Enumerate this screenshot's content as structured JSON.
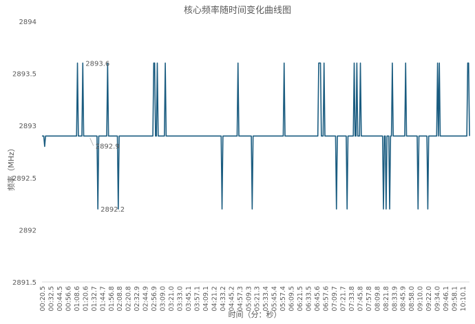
{
  "chart_data": {
    "type": "line",
    "title": "核心频率随时间变化曲线图",
    "xlabel": "时间（分：秒）",
    "ylabel": "频率（MHz）",
    "ylim": [
      2891.5,
      2894
    ],
    "yticks": [
      2891.5,
      2892,
      2892.5,
      2893,
      2893.5,
      2894
    ],
    "ytick_labels": [
      "2891.5",
      "2892",
      "2892.5",
      "2893",
      "2893.5",
      "2894"
    ],
    "grid": false,
    "line_color": "#1a5c80",
    "xtick_labels": [
      "00:20.5",
      "00:32.5",
      "00:44.5",
      "00:56.6",
      "01:08.6",
      "01:20.6",
      "01:32.7",
      "01:44.7",
      "01:56.8",
      "02:08.8",
      "02:20.8",
      "02:32.9",
      "02:44.9",
      "02:56.9",
      "03:09.0",
      "03:21.0",
      "03:33.0",
      "03:45.1",
      "03:57.1",
      "04:09.1",
      "04:21.2",
      "04:33.2",
      "04:45.2",
      "04:57.3",
      "05:09.3",
      "05:21.3",
      "05:33.4",
      "05:45.4",
      "05:57.4",
      "06:09.5",
      "06:21.5",
      "06:33.5",
      "06:45.6",
      "06:57.6",
      "07:09.7",
      "07:21.7",
      "07:33.8",
      "07:45.8",
      "07:57.8",
      "08:09.8",
      "08:21.8",
      "08:33.9",
      "08:45.9",
      "08:58.0",
      "09:10.0",
      "09:22.0",
      "09:34.0",
      "09:46.1",
      "09:58.1",
      "10:10.1"
    ],
    "series": [
      {
        "values": [
          2892.9,
          2892.9,
          2892.9,
          2892.8,
          2892.9,
          2892.9,
          2892.9,
          2892.9,
          2892.9,
          2892.9,
          2892.9,
          2892.9,
          2892.9,
          2892.9,
          2892.9,
          2892.9,
          2892.9,
          2892.9,
          2892.9,
          2892.9,
          2892.9,
          2892.9,
          2892.9,
          2892.9,
          2892.9,
          2892.9,
          2892.9,
          2892.9,
          2892.9,
          2892.9,
          2892.9,
          2892.9,
          2892.9,
          2892.9,
          2892.9,
          2892.9,
          2892.9,
          2892.9,
          2892.9,
          2892.9,
          2893.6,
          2892.9,
          2892.9,
          2892.9,
          2892.9,
          2892.9,
          2893.6,
          2892.9,
          2892.9,
          2892.9,
          2892.9,
          2892.9,
          2892.9,
          2892.9,
          2892.9,
          2892.9,
          2892.9,
          2892.9,
          2892.9,
          2892.9,
          2892.9,
          2892.9,
          2892.9,
          2892.2,
          2892.9,
          2892.9,
          2892.9,
          2892.9,
          2892.9,
          2892.9,
          2892.9,
          2892.9,
          2892.9,
          2892.9,
          2893.6,
          2892.9,
          2892.9,
          2892.9,
          2892.9,
          2892.9,
          2892.9,
          2892.9,
          2892.9,
          2892.9,
          2892.9,
          2892.9,
          2892.2,
          2892.9,
          2892.9,
          2892.9,
          2892.9,
          2892.9,
          2892.9,
          2892.9,
          2892.9,
          2892.9,
          2892.9,
          2892.9,
          2892.9,
          2892.9,
          2892.9,
          2892.9,
          2892.9,
          2892.9,
          2892.9,
          2892.9,
          2892.9,
          2892.9,
          2892.9,
          2892.9,
          2892.9,
          2892.9,
          2892.9,
          2892.9,
          2892.9,
          2892.9,
          2892.9,
          2892.9,
          2892.9,
          2892.9,
          2892.9,
          2892.9,
          2892.9,
          2892.9,
          2892.9,
          2892.9,
          2893.6,
          2893.6,
          2892.9,
          2892.9,
          2893.6,
          2892.9,
          2892.9,
          2892.9,
          2892.9,
          2892.9,
          2892.9,
          2892.9,
          2892.9,
          2893.6,
          2892.9,
          2892.9,
          2892.9,
          2892.9,
          2892.9,
          2892.9,
          2892.9,
          2892.9,
          2892.9,
          2892.9,
          2892.9,
          2892.9,
          2892.9,
          2892.9,
          2892.9,
          2892.9,
          2892.9,
          2892.9,
          2892.9,
          2892.9,
          2892.9,
          2892.9,
          2892.9,
          2892.9,
          2892.9,
          2892.9,
          2892.9,
          2892.9,
          2892.9,
          2892.9,
          2892.9,
          2892.9,
          2892.9,
          2892.9,
          2892.9,
          2892.9,
          2892.9,
          2892.9,
          2892.9,
          2892.9,
          2892.9,
          2892.9,
          2892.9,
          2892.9,
          2892.9,
          2892.9,
          2892.9,
          2892.9,
          2892.9,
          2892.9,
          2892.9,
          2892.9,
          2892.9,
          2892.9,
          2892.9,
          2892.9,
          2892.9,
          2892.9,
          2892.9,
          2892.9,
          2892.9,
          2892.9,
          2892.9,
          2892.2,
          2892.9,
          2892.9,
          2892.9,
          2892.9,
          2892.9,
          2892.9,
          2892.9,
          2892.9,
          2892.9,
          2892.9,
          2892.9,
          2892.9,
          2892.9,
          2892.9,
          2892.9,
          2892.9,
          2892.9,
          2893.6,
          2892.9,
          2892.9,
          2892.9,
          2892.9,
          2892.9,
          2892.9,
          2892.9,
          2892.9,
          2892.9,
          2892.9,
          2892.9,
          2892.9,
          2892.9,
          2892.9,
          2892.9,
          2892.2,
          2892.9,
          2892.9,
          2892.9,
          2892.9,
          2892.9,
          2892.9,
          2892.9,
          2892.9,
          2892.9,
          2892.9,
          2892.9,
          2892.9,
          2892.9,
          2892.9,
          2892.9,
          2892.9,
          2892.9,
          2892.9,
          2892.9,
          2892.9,
          2892.9,
          2892.9,
          2892.9,
          2892.9,
          2892.9,
          2892.9,
          2892.9,
          2892.9,
          2892.9,
          2892.9,
          2892.9,
          2892.9,
          2892.9,
          2892.9,
          2892.9,
          2893.6,
          2892.9,
          2892.9,
          2892.9,
          2892.9,
          2892.9,
          2892.9,
          2892.9,
          2892.9,
          2892.9,
          2892.9,
          2892.9,
          2892.9,
          2892.9,
          2892.9,
          2892.9,
          2892.9,
          2892.9,
          2892.9,
          2892.9,
          2892.9,
          2892.9,
          2892.9,
          2892.9,
          2892.9,
          2892.9,
          2892.9,
          2892.9,
          2892.9,
          2892.9,
          2892.9,
          2892.9,
          2892.9,
          2892.9,
          2892.9,
          2892.9,
          2892.9,
          2892.9,
          2892.9,
          2893.6,
          2893.6,
          2893.6,
          2892.9,
          2892.9,
          2892.9,
          2893.6,
          2892.9,
          2892.9,
          2892.9,
          2892.9,
          2892.9,
          2892.9,
          2892.9,
          2892.9,
          2892.9,
          2892.9,
          2892.9,
          2892.9,
          2892.9,
          2892.2,
          2892.9,
          2892.9,
          2892.9,
          2892.9,
          2892.9,
          2892.9,
          2892.9,
          2892.9,
          2892.9,
          2892.9,
          2892.9,
          2892.2,
          2892.9,
          2892.9,
          2892.9,
          2892.9,
          2892.9,
          2892.9,
          2892.9,
          2893.6,
          2892.9,
          2892.9,
          2893.6,
          2892.9,
          2892.9,
          2892.9,
          2893.6,
          2892.9,
          2892.9,
          2892.9,
          2892.9,
          2892.9,
          2892.9,
          2892.9,
          2892.9,
          2892.9,
          2892.9,
          2892.9,
          2892.9,
          2892.9,
          2892.9,
          2892.9,
          2892.9,
          2892.9,
          2892.9,
          2892.9,
          2892.9,
          2892.9,
          2892.9,
          2892.9,
          2892.9,
          2892.9,
          2892.2,
          2892.9,
          2892.9,
          2892.2,
          2892.9,
          2892.9,
          2892.9,
          2892.2,
          2892.9,
          2892.9,
          2893.6,
          2892.9,
          2892.9,
          2892.9,
          2892.9,
          2892.9,
          2892.9,
          2892.9,
          2892.9,
          2892.9,
          2892.9,
          2892.9,
          2892.9,
          2892.9,
          2892.9,
          2893.6,
          2892.9,
          2892.9,
          2892.9,
          2892.9,
          2892.9,
          2892.9,
          2892.9,
          2892.9,
          2892.9,
          2892.9,
          2892.9,
          2892.9,
          2892.9,
          2892.2,
          2892.9,
          2892.9,
          2892.9,
          2892.9,
          2892.9,
          2892.9,
          2892.9,
          2892.9,
          2892.9,
          2892.9,
          2892.2,
          2892.9,
          2892.9,
          2892.9,
          2892.9,
          2892.9,
          2892.9,
          2892.9,
          2892.9,
          2892.9,
          2892.9,
          2893.6,
          2892.9,
          2893.6,
          2892.9,
          2892.9,
          2892.9,
          2892.9,
          2892.9,
          2892.9,
          2892.9,
          2892.9,
          2892.9,
          2892.9,
          2892.9,
          2892.9,
          2892.9,
          2892.9,
          2892.9,
          2892.9,
          2892.9,
          2892.9,
          2892.9,
          2892.9,
          2892.9,
          2892.9,
          2892.9,
          2892.9,
          2892.9,
          2892.9,
          2892.9,
          2892.9,
          2892.9,
          2892.9,
          2892.9,
          2893.6,
          2893.6,
          2892.9
        ]
      }
    ],
    "annotations": [
      {
        "text": "2893.6",
        "index": 46,
        "value": 2893.6,
        "placement": "right"
      },
      {
        "text": "2892.9",
        "index": 51,
        "value": 2892.9,
        "placement": "below-right"
      },
      {
        "text": "2892.2",
        "index": 63,
        "value": 2892.2,
        "placement": "right"
      }
    ]
  }
}
